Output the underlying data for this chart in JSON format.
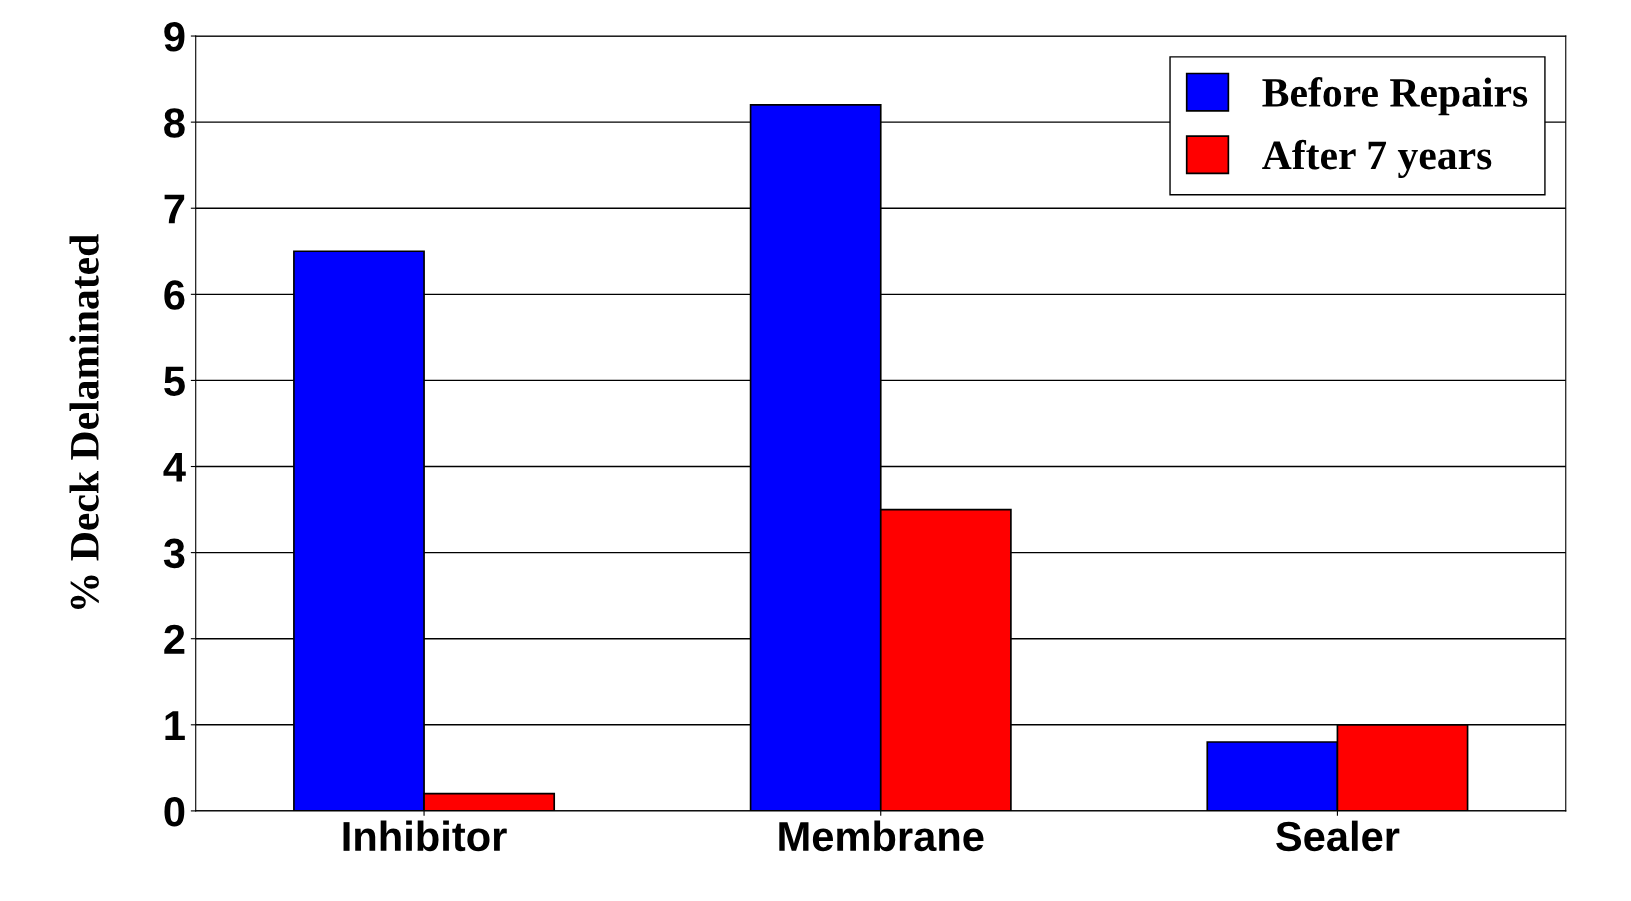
{
  "chart_data": {
    "type": "bar",
    "ylabel": "% Deck Delaminated",
    "categories": [
      "Inhibitor",
      "Membrane",
      "Sealer"
    ],
    "series": [
      {
        "name": "Before Repairs",
        "color": "#0000ff",
        "values": [
          6.5,
          8.2,
          0.8
        ]
      },
      {
        "name": "After 7 years",
        "color": "#ff0000",
        "values": [
          0.2,
          3.5,
          1.0
        ]
      }
    ],
    "ylim": [
      0,
      9
    ],
    "yticks": [
      0,
      1,
      2,
      3,
      4,
      5,
      6,
      7,
      8,
      9
    ],
    "grid": "y",
    "legend": "top right"
  }
}
